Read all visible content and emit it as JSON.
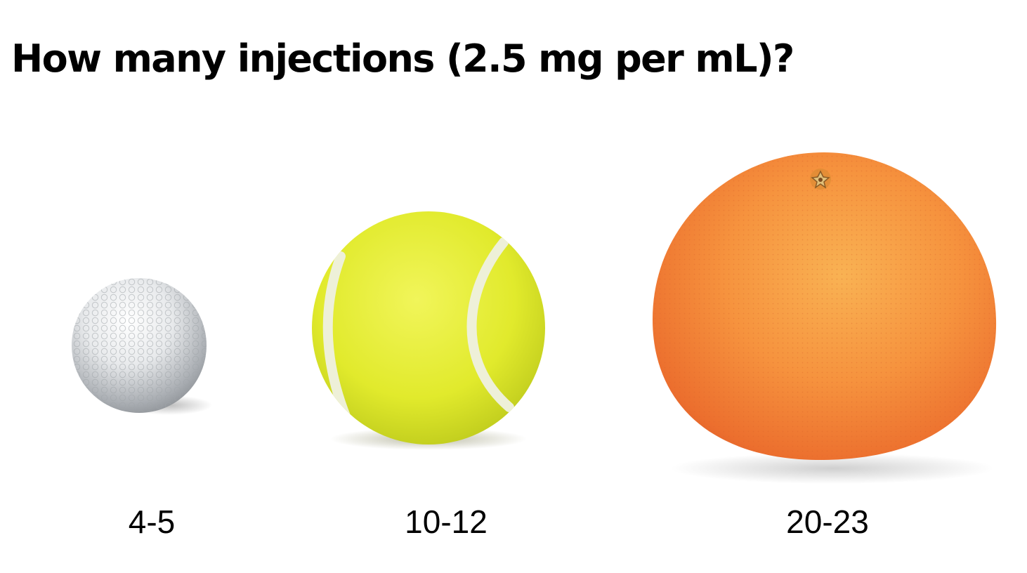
{
  "title": "How many injections (2.5 mg per mL)?",
  "items": [
    {
      "object": "golf-ball",
      "label": "4-5",
      "color": "#e2e4e6"
    },
    {
      "object": "tennis-ball",
      "label": "10-12",
      "color": "#e4ee2c"
    },
    {
      "object": "grapefruit",
      "label": "20-23",
      "color": "#f6883e"
    }
  ]
}
